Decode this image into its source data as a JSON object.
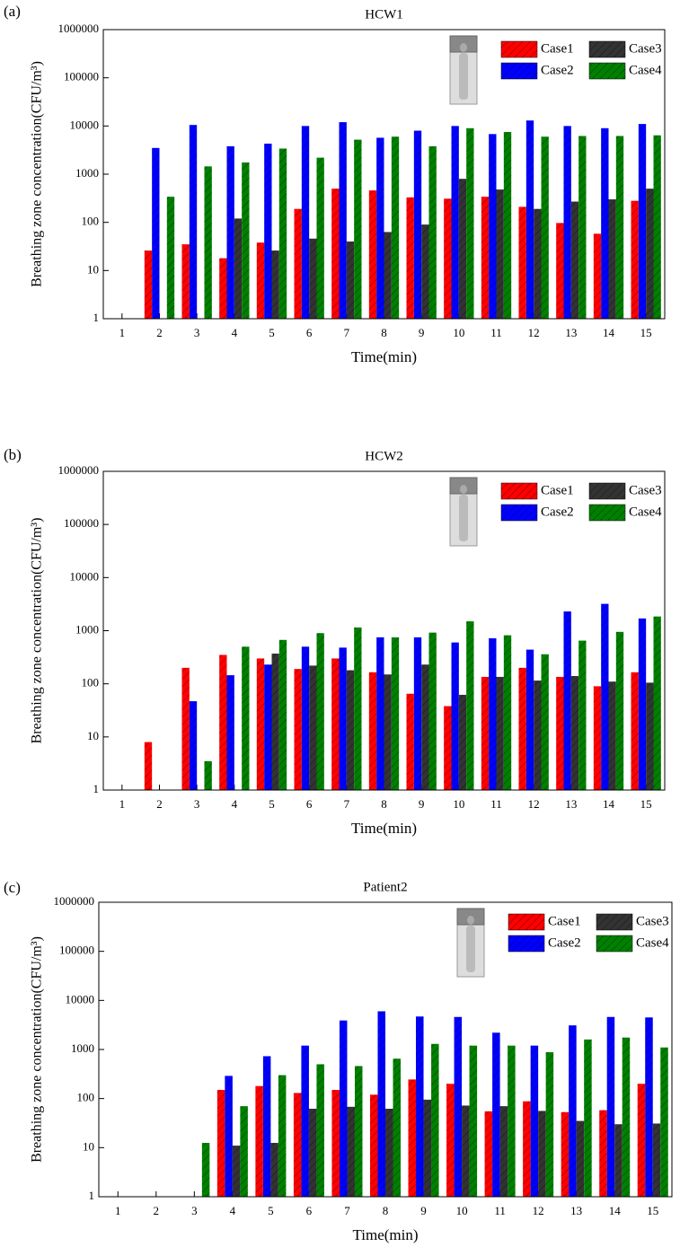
{
  "chart_data": [
    {
      "type": "bar",
      "label": "(a)",
      "title": "HCW1",
      "x_label": "Time(min)",
      "y_label": "Breathing zone concentration(CFU/m³)",
      "categories": [
        "1",
        "2",
        "3",
        "4",
        "5",
        "6",
        "7",
        "8",
        "9",
        "10",
        "11",
        "12",
        "13",
        "14",
        "15"
      ],
      "log_scale": true,
      "ylim": [
        1,
        1000000
      ],
      "yticks": [
        1,
        10,
        100,
        1000,
        10000,
        100000,
        1000000
      ],
      "legend": "upper right",
      "series": [
        {
          "name": "Case1",
          "color": "#ff0000",
          "values": [
            null,
            26,
            35,
            18,
            38,
            190,
            500,
            460,
            330,
            310,
            340,
            210,
            97,
            58,
            280
          ]
        },
        {
          "name": "Case2",
          "color": "#0000ff",
          "values": [
            null,
            3500,
            10500,
            3800,
            4300,
            10000,
            12000,
            5700,
            8000,
            10000,
            6800,
            13000,
            10000,
            9000,
            11000
          ]
        },
        {
          "name": "Case3",
          "color": "#333333",
          "values": [
            null,
            null,
            null,
            120,
            26,
            46,
            40,
            63,
            90,
            800,
            480,
            190,
            270,
            300,
            500
          ]
        },
        {
          "name": "Case4",
          "color": "#008000",
          "values": [
            null,
            340,
            1450,
            1750,
            3400,
            2200,
            5200,
            6000,
            3800,
            9000,
            7500,
            6000,
            6200,
            6200,
            6400
          ]
        }
      ]
    },
    {
      "type": "bar",
      "label": "(b)",
      "title": "HCW2",
      "x_label": "Time(min)",
      "y_label": "Breathing zone concentration(CFU/m³)",
      "categories": [
        "1",
        "2",
        "3",
        "4",
        "5",
        "6",
        "7",
        "8",
        "9",
        "10",
        "11",
        "12",
        "13",
        "14",
        "15"
      ],
      "log_scale": true,
      "ylim": [
        1,
        1000000
      ],
      "yticks": [
        1,
        10,
        100,
        1000,
        10000,
        100000,
        1000000
      ],
      "legend": "upper right",
      "series": [
        {
          "name": "Case1",
          "color": "#ff0000",
          "values": [
            null,
            8,
            200,
            350,
            300,
            190,
            300,
            165,
            65,
            38,
            135,
            200,
            135,
            90,
            165
          ]
        },
        {
          "name": "Case2",
          "color": "#0000ff",
          "values": [
            null,
            null,
            47,
            145,
            230,
            500,
            480,
            750,
            750,
            600,
            720,
            440,
            2300,
            3200,
            1700
          ]
        },
        {
          "name": "Case3",
          "color": "#333333",
          "values": [
            null,
            null,
            null,
            null,
            370,
            220,
            180,
            150,
            230,
            62,
            135,
            115,
            140,
            110,
            105
          ]
        },
        {
          "name": "Case4",
          "color": "#008000",
          "values": [
            null,
            null,
            3.5,
            500,
            670,
            900,
            1150,
            750,
            920,
            1500,
            820,
            360,
            650,
            950,
            1850
          ]
        }
      ]
    },
    {
      "type": "bar",
      "label": "(c)",
      "title": "Patient2",
      "x_label": "Time(min)",
      "y_label": "Breathing zone concentration(CFU/m³)",
      "categories": [
        "1",
        "2",
        "3",
        "4",
        "5",
        "6",
        "7",
        "8",
        "9",
        "10",
        "11",
        "12",
        "13",
        "14",
        "15"
      ],
      "log_scale": true,
      "ylim": [
        1,
        1000000
      ],
      "yticks": [
        1,
        10,
        100,
        1000,
        10000,
        100000,
        1000000
      ],
      "legend": "upper right",
      "series": [
        {
          "name": "Case1",
          "color": "#ff0000",
          "values": [
            null,
            null,
            null,
            150,
            180,
            130,
            150,
            120,
            245,
            200,
            55,
            88,
            53,
            58,
            200
          ]
        },
        {
          "name": "Case2",
          "color": "#0000ff",
          "values": [
            null,
            null,
            null,
            290,
            730,
            1200,
            3900,
            6000,
            4700,
            4600,
            2200,
            1200,
            3100,
            4600,
            4500
          ]
        },
        {
          "name": "Case3",
          "color": "#333333",
          "values": [
            null,
            null,
            null,
            11,
            12.5,
            62,
            68,
            62,
            95,
            72,
            70,
            56,
            35,
            30,
            31
          ]
        },
        {
          "name": "Case4",
          "color": "#008000",
          "values": [
            null,
            null,
            12.5,
            70,
            300,
            500,
            460,
            650,
            1300,
            1200,
            1200,
            880,
            1600,
            1750,
            1100
          ]
        }
      ]
    }
  ]
}
